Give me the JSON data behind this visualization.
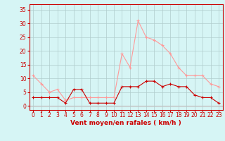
{
  "hours": [
    0,
    1,
    2,
    3,
    4,
    5,
    6,
    7,
    8,
    9,
    10,
    11,
    12,
    13,
    14,
    15,
    16,
    17,
    18,
    19,
    20,
    21,
    22,
    23
  ],
  "wind_avg": [
    3,
    3,
    3,
    3,
    1,
    6,
    6,
    1,
    1,
    1,
    1,
    7,
    7,
    7,
    9,
    9,
    7,
    8,
    7,
    7,
    4,
    3,
    3,
    1
  ],
  "wind_gust": [
    11,
    8,
    5,
    6,
    2,
    3,
    3,
    3,
    3,
    3,
    3,
    19,
    14,
    31,
    25,
    24,
    22,
    19,
    14,
    11,
    11,
    11,
    8,
    7
  ],
  "bg_color": "#d6f5f5",
  "grid_color": "#b0cccc",
  "line_avg_color": "#cc0000",
  "line_gust_color": "#ff9999",
  "xlabel": "Vent moyen/en rafales ( km/h )",
  "yticks": [
    0,
    5,
    10,
    15,
    20,
    25,
    30,
    35
  ],
  "ylim": [
    -1.5,
    37
  ],
  "xlim": [
    -0.5,
    23.5
  ],
  "tick_fontsize": 5.5,
  "xlabel_fontsize": 6.5
}
